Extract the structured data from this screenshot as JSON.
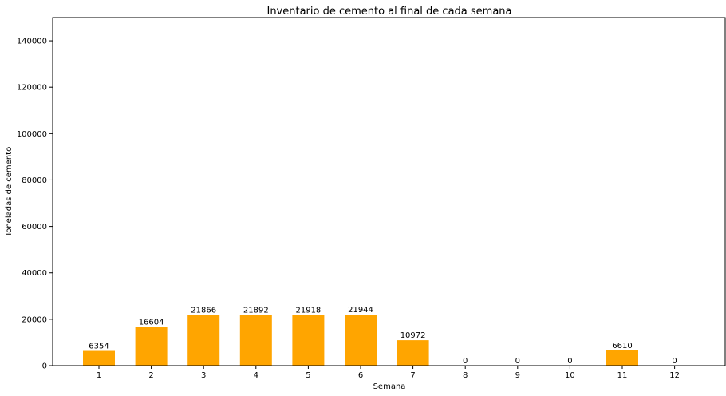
{
  "chart_data": {
    "type": "bar",
    "title": "Inventario de cemento al final de cada semana",
    "xlabel": "Semana",
    "ylabel": "Toneladas de cemento",
    "categories": [
      "1",
      "2",
      "3",
      "4",
      "5",
      "6",
      "7",
      "8",
      "9",
      "10",
      "11",
      "12"
    ],
    "values": [
      6354,
      16604,
      21866,
      21892,
      21918,
      21944,
      10972,
      0,
      0,
      0,
      6610,
      0
    ],
    "data_labels": [
      "6354",
      "16604",
      "21866",
      "21892",
      "21918",
      "21944",
      "10972",
      "0",
      "0",
      "0",
      "6610",
      "0"
    ],
    "ylim": [
      0,
      150000
    ],
    "yticks": [
      0,
      20000,
      40000,
      60000,
      80000,
      100000,
      120000,
      140000
    ],
    "ytick_labels": [
      "0",
      "20000",
      "40000",
      "60000",
      "80000",
      "100000",
      "120000",
      "140000"
    ],
    "bar_color": "#ffa500",
    "grid": false,
    "legend": "none"
  }
}
